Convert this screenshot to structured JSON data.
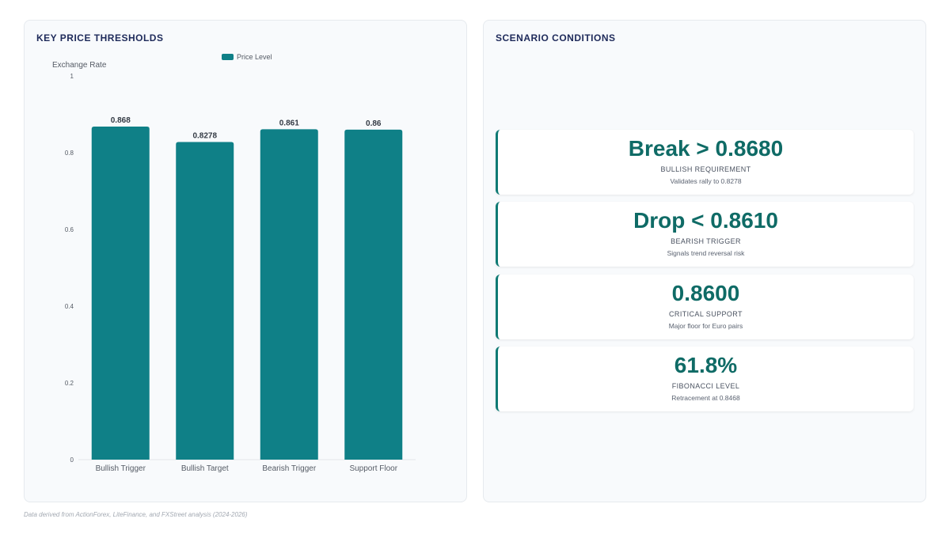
{
  "left_panel": {
    "title": "KEY PRICE THRESHOLDS"
  },
  "right_panel": {
    "title": "SCENARIO CONDITIONS"
  },
  "chart_data": {
    "type": "bar",
    "categories": [
      "Bullish Trigger",
      "Bullish Target",
      "Bearish Trigger",
      "Support Floor"
    ],
    "series": [
      {
        "name": "Price Level",
        "values": [
          0.868,
          0.8278,
          0.861,
          0.86
        ],
        "color": "#0f8087"
      }
    ],
    "value_labels": [
      "0.868",
      "0.8278",
      "0.861",
      "0.86"
    ],
    "ylabel": "Exchange Rate",
    "ylim": [
      0,
      1
    ],
    "yticks": [
      0,
      0.2,
      0.4,
      0.6,
      0.8,
      1
    ],
    "ytick_labels": [
      "0",
      "0.2",
      "0.4",
      "0.6",
      "0.8",
      "1"
    ],
    "grid": false,
    "legend_position": "top"
  },
  "scenarios": [
    {
      "value": "Break > 0.8680",
      "label": "BULLISH REQUIREMENT",
      "sub": "Validates rally to 0.8278"
    },
    {
      "value": "Drop < 0.8610",
      "label": "BEARISH TRIGGER",
      "sub": "Signals trend reversal risk"
    },
    {
      "value": "0.8600",
      "label": "CRITICAL SUPPORT",
      "sub": "Major floor for Euro pairs"
    },
    {
      "value": "61.8%",
      "label": "FIBONACCI LEVEL",
      "sub": "Retracement at 0.8468"
    }
  ],
  "colors": {
    "accent": "#0f6b66",
    "bar": "#0f8087",
    "title": "#1e2a5a"
  },
  "footnote": "Data derived from ActionForex, LiteFinance, and FXStreet analysis (2024-2026)"
}
